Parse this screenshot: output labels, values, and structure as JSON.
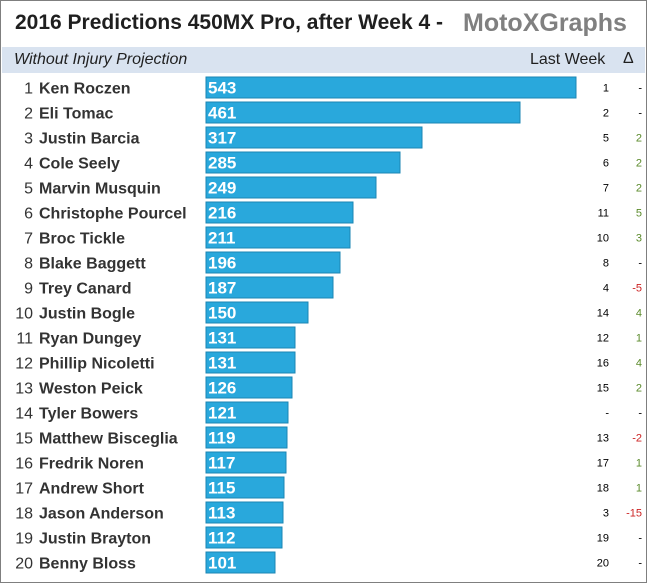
{
  "header": {
    "title": "2016 Predictions 450MX Pro, after Week 4  -",
    "brand": "MotoXGraphs",
    "subtitle": "Without Injury Projection",
    "last_week_label": "Last Week",
    "delta_label": "Δ"
  },
  "colors": {
    "bar": "#29a8dc",
    "bar_border": "#1b86b3",
    "positive": "#5a8a2a",
    "negative": "#cc2222",
    "neutral": "#000000",
    "subheader_bg": "#d9e3f0"
  },
  "chart_data": {
    "type": "bar",
    "orientation": "horizontal",
    "xlim": [
      0,
      543
    ],
    "categories": [
      "Ken Roczen",
      "Eli Tomac",
      "Justin Barcia",
      "Cole Seely",
      "Marvin Musquin",
      "Christophe Pourcel",
      "Broc Tickle",
      "Blake Baggett",
      "Trey Canard",
      "Justin Bogle",
      "Ryan Dungey",
      "Phillip Nicoletti",
      "Weston Peick",
      "Tyler Bowers",
      "Matthew Bisceglia",
      "Fredrik Noren",
      "Andrew Short",
      "Jason Anderson",
      "Justin Brayton",
      "Benny Bloss"
    ],
    "ranks": [
      "1",
      "2",
      "3",
      "4",
      "5",
      "6",
      "7",
      "8",
      "9",
      "10",
      "11",
      "12",
      "13",
      "14",
      "15",
      "16",
      "17",
      "18",
      "19",
      "20"
    ],
    "values": [
      543,
      461,
      317,
      285,
      249,
      216,
      211,
      196,
      187,
      150,
      131,
      131,
      126,
      121,
      119,
      117,
      115,
      113,
      112,
      101
    ],
    "last_week": [
      "1",
      "2",
      "5",
      "6",
      "7",
      "11",
      "10",
      "8",
      "4",
      "14",
      "12",
      "16",
      "15",
      "-",
      "13",
      "17",
      "18",
      "3",
      "19",
      "20"
    ],
    "delta": [
      "-",
      "-",
      "2",
      "2",
      "2",
      "5",
      "3",
      "-",
      "-5",
      "4",
      "1",
      "4",
      "2",
      "-",
      "-2",
      "1",
      "1",
      "-15",
      "-",
      "-"
    ]
  }
}
